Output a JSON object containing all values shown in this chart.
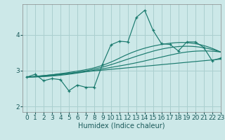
{
  "bg_color": "#cce8e8",
  "grid_color": "#aacfcf",
  "line_color": "#1a7a6e",
  "xlabel": "Humidex (Indice chaleur)",
  "xlim": [
    -0.5,
    23
  ],
  "ylim": [
    1.85,
    4.85
  ],
  "xticks": [
    0,
    1,
    2,
    3,
    4,
    5,
    6,
    7,
    8,
    9,
    10,
    11,
    12,
    13,
    14,
    15,
    16,
    17,
    18,
    19,
    20,
    21,
    22,
    23
  ],
  "yticks": [
    2,
    3,
    4
  ],
  "tick_fontsize": 6.5,
  "xlabel_fontsize": 7,
  "jagged_x": [
    0,
    1,
    2,
    3,
    4,
    5,
    6,
    7,
    8,
    9,
    10,
    11,
    12,
    13,
    14,
    15,
    16,
    17,
    18,
    19,
    20,
    21,
    22,
    23
  ],
  "jagged_y": [
    2.82,
    2.9,
    2.72,
    2.78,
    2.75,
    2.44,
    2.6,
    2.54,
    2.54,
    3.18,
    3.72,
    3.82,
    3.8,
    4.48,
    4.68,
    4.12,
    3.75,
    3.73,
    3.55,
    3.8,
    3.8,
    3.65,
    3.28,
    3.35
  ],
  "line1_x": [
    0,
    23
  ],
  "line1_y": [
    2.82,
    3.32
  ],
  "line2_x": [
    0,
    23
  ],
  "line2_y": [
    2.82,
    3.52
  ],
  "line3_x": [
    0,
    23
  ],
  "line3_y": [
    2.82,
    3.72
  ],
  "smooth_pts_x": [
    0,
    5,
    9,
    13,
    16,
    19,
    23
  ],
  "smooth2_y": [
    2.82,
    2.9,
    3.05,
    3.22,
    3.38,
    3.52,
    3.52
  ],
  "smooth3_y": [
    2.82,
    2.92,
    3.1,
    3.4,
    3.6,
    3.68,
    3.52
  ],
  "smooth4_y": [
    2.82,
    2.95,
    3.15,
    3.55,
    3.73,
    3.78,
    3.52
  ]
}
